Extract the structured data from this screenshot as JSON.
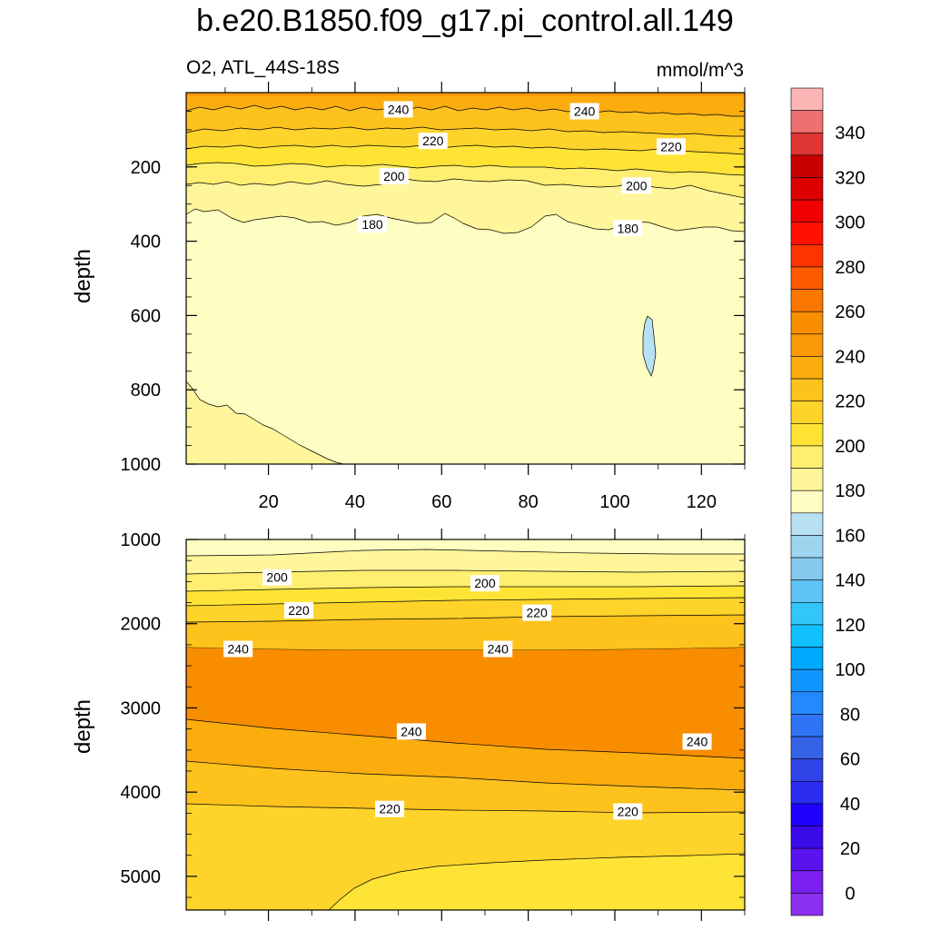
{
  "title": "b.e20.B1850.f09_g17.pi_control.all.149",
  "subtitle": "O2, ATL_44S-18S",
  "units": "mmol/m^3",
  "colors": {
    "light_yellow": "#fffec2",
    "yellow_180": "#fff59a",
    "yellow_190": "#ffee70",
    "yellow_200": "#ffe436",
    "yellow_210": "#fed32a",
    "orange_220": "#fdc21c",
    "orange_230": "#fbad0e",
    "orange_240": "#fa9a06",
    "orange_250": "#f88d00",
    "light_blue": "#b7e0f2"
  },
  "chart_data": [
    {
      "type": "contour",
      "panel": "upper",
      "ylabel": "depth",
      "xlim": [
        1,
        130
      ],
      "ylim": [
        1000,
        0
      ],
      "x_ticks": [
        "20",
        "40",
        "60",
        "80",
        "100",
        "120"
      ],
      "y_ticks": [
        "200",
        "400",
        "600",
        "800",
        "1000"
      ],
      "contour_labels": [
        {
          "text": "240",
          "x": 50,
          "depth": 45
        },
        {
          "text": "240",
          "x": 93,
          "depth": 50
        },
        {
          "text": "220",
          "x": 58,
          "depth": 130
        },
        {
          "text": "220",
          "x": 113,
          "depth": 145
        },
        {
          "text": "200",
          "x": 49,
          "depth": 225
        },
        {
          "text": "200",
          "x": 105,
          "depth": 250
        },
        {
          "text": "180",
          "x": 44,
          "depth": 355
        },
        {
          "text": "180",
          "x": 103,
          "depth": 365
        }
      ]
    },
    {
      "type": "contour",
      "panel": "lower",
      "ylabel": "depth",
      "xlim": [
        1,
        130
      ],
      "ylim": [
        5400,
        1000
      ],
      "y_ticks": [
        "1000",
        "2000",
        "3000",
        "4000",
        "5000"
      ],
      "contour_labels": [
        {
          "text": "200",
          "x": 22,
          "depth": 1450
        },
        {
          "text": "200",
          "x": 70,
          "depth": 1520
        },
        {
          "text": "220",
          "x": 27,
          "depth": 1840
        },
        {
          "text": "220",
          "x": 82,
          "depth": 1870
        },
        {
          "text": "240",
          "x": 13,
          "depth": 2300
        },
        {
          "text": "240",
          "x": 73,
          "depth": 2300
        },
        {
          "text": "240",
          "x": 53,
          "depth": 3280
        },
        {
          "text": "240",
          "x": 119,
          "depth": 3400
        },
        {
          "text": "220",
          "x": 48,
          "depth": 4200
        },
        {
          "text": "220",
          "x": 103,
          "depth": 4230
        }
      ]
    }
  ],
  "colorbar": {
    "labels": [
      "340",
      "320",
      "300",
      "280",
      "260",
      "240",
      "220",
      "200",
      "180",
      "160",
      "140",
      "120",
      "100",
      "80",
      "60",
      "40",
      "20",
      "0"
    ],
    "boxes": [
      "#fbb5b5",
      "#ee7070",
      "#df3535",
      "#c80000",
      "#dc0000",
      "#f00000",
      "#ff1000",
      "#ff3300",
      "#ff5a00",
      "#fb7600",
      "#f88d00",
      "#fa9a06",
      "#fbad0e",
      "#fdc21c",
      "#fed32a",
      "#ffe436",
      "#ffee70",
      "#fff59a",
      "#fffec2",
      "#b7e0f2",
      "#9fd4ef",
      "#88c9ef",
      "#60c3f5",
      "#33c6fa",
      "#11c1ff",
      "#00a8ff",
      "#1195ff",
      "#2489ff",
      "#2f74f4",
      "#3463e7",
      "#3144e8",
      "#2b2cf0",
      "#1e00ff",
      "#3a0be8",
      "#5a12ef",
      "#7a1fef",
      "#8b2ff0"
    ]
  }
}
